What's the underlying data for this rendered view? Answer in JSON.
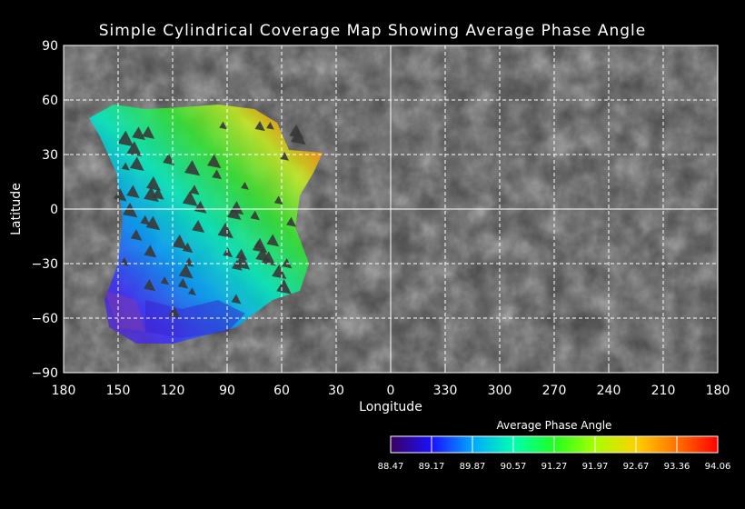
{
  "chart_data": {
    "type": "heatmap",
    "title": "Simple Cylindrical Coverage Map Showing Average Phase Angle",
    "xlabel": "Longitude",
    "ylabel": "Latitude",
    "x_tick_labels": [
      "180",
      "150",
      "120",
      "90",
      "60",
      "30",
      "0",
      "330",
      "300",
      "270",
      "240",
      "210",
      "180"
    ],
    "y_tick_labels": [
      "90",
      "60",
      "30",
      "0",
      "−30",
      "−60",
      "−90"
    ],
    "grid": true,
    "grid_style": "dashed",
    "colorbar": {
      "title": "Average Phase Angle",
      "tick_labels": [
        "88.47",
        "89.17",
        "89.87",
        "90.57",
        "91.27",
        "91.97",
        "92.67",
        "93.36",
        "94.06"
      ],
      "range": [
        88.47,
        94.06
      ],
      "colors": [
        "#3a0060",
        "#1a10ff",
        "#00a8ff",
        "#00ffb0",
        "#20ff20",
        "#a8ff00",
        "#ffd000",
        "#ff7000",
        "#ff0000"
      ]
    },
    "coverage": {
      "lon_range_west": [
        180,
        40
      ],
      "lat_range": [
        -70,
        58
      ],
      "phase_high_edge_lon": 45,
      "phase_low_region": "southwest"
    }
  }
}
